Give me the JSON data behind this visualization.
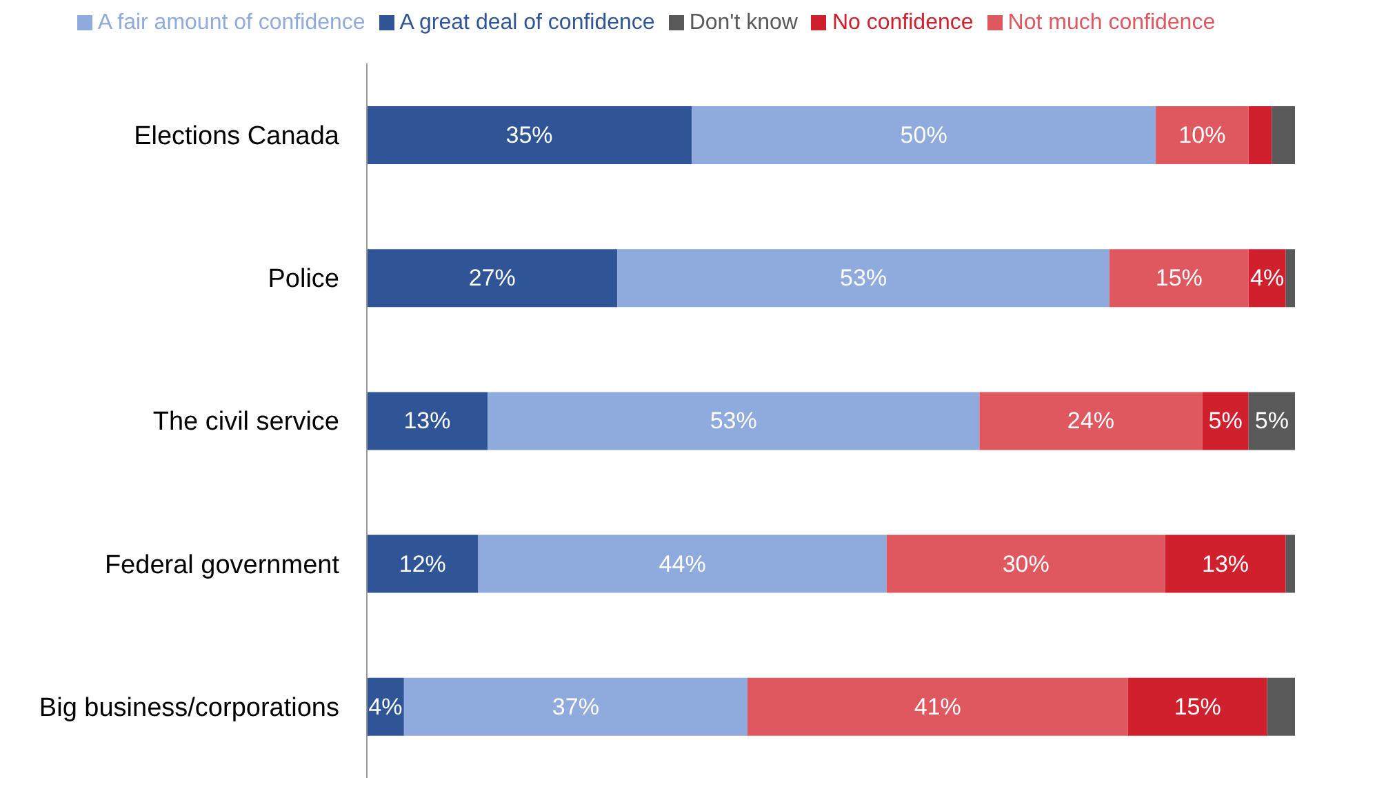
{
  "chart_data": {
    "type": "bar",
    "orientation": "horizontal",
    "stacked": true,
    "legend": "top",
    "grid": false,
    "categories": [
      "Elections Canada",
      "Police",
      "The civil service",
      "Federal government",
      "Big business/corporations"
    ],
    "series": [
      {
        "name": "A great deal of confidence",
        "color": "#2f5597",
        "values": [
          35,
          27,
          13,
          12,
          4
        ],
        "value_labels": [
          "35%",
          "27%",
          "13%",
          "12%",
          "4%"
        ]
      },
      {
        "name": "A fair amount of confidence",
        "color": "#8faadc",
        "values": [
          50,
          53,
          53,
          44,
          37
        ],
        "value_labels": [
          "50%",
          "53%",
          "53%",
          "44%",
          "37%"
        ]
      },
      {
        "name": "Not much confidence",
        "color": "#e0585f",
        "values": [
          10,
          15,
          24,
          30,
          41
        ],
        "value_labels": [
          "10%",
          "15%",
          "24%",
          "30%",
          "41%"
        ]
      },
      {
        "name": "No confidence",
        "color": "#d0202e",
        "values": [
          2.5,
          4,
          5,
          13,
          15
        ],
        "value_labels": [
          null,
          "4%",
          "5%",
          "13%",
          "15%"
        ]
      },
      {
        "name": "Don't know",
        "color": "#595959",
        "values": [
          2.5,
          1,
          5,
          1,
          3
        ],
        "value_labels": [
          null,
          null,
          "5%",
          null,
          null
        ]
      }
    ]
  }
}
